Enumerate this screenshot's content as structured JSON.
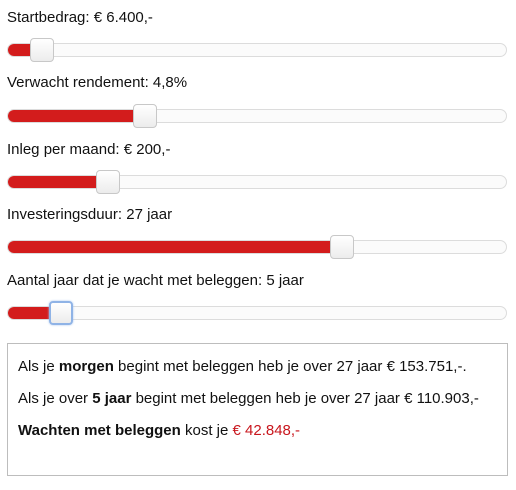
{
  "sliders": [
    {
      "id": "startbedrag",
      "label": "Startbedrag: € 6.400,-",
      "fraction": 0.068
    },
    {
      "id": "rendement",
      "label": "Verwacht rendement: 4,8%",
      "fraction": 0.276
    },
    {
      "id": "inleg",
      "label": "Inleg per maand: € 200,-",
      "fraction": 0.2
    },
    {
      "id": "duur",
      "label": "Investeringsduur: 27 jaar",
      "fraction": 0.67
    },
    {
      "id": "wacht",
      "label": "Aantal jaar dat je wacht met beleggen: 5 jaar",
      "fraction": 0.106
    }
  ],
  "result": {
    "line1_pre": "Als je ",
    "line1_bold": "morgen",
    "line1_post": " begint met beleggen heb je over 27 jaar € 153.751,-.",
    "line2_pre": "Als je over ",
    "line2_bold": "5 jaar",
    "line2_post": " begint met beleggen heb je over 27 jaar € 110.903,-",
    "line3_bold": "Wachten met beleggen",
    "line3_mid": " kost je ",
    "line3_amount": "€ 42.848,-"
  },
  "colors": {
    "fill": "#d31c1c",
    "amount": "#c8161d",
    "focus": "#8fb3e6"
  }
}
